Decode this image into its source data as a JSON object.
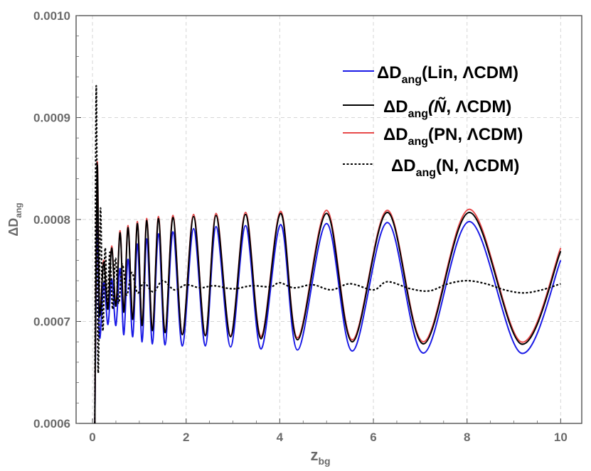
{
  "chart_data": {
    "type": "line",
    "xlabel": {
      "base": "z",
      "sub": "bg"
    },
    "ylabel": {
      "base": "ΔD",
      "sub": "ang"
    },
    "xlim": [
      -0.35,
      10.45
    ],
    "ylim": [
      0.0006,
      0.001
    ],
    "xticks": [
      {
        "value": 0,
        "label": "0"
      },
      {
        "value": 2,
        "label": "2"
      },
      {
        "value": 4,
        "label": "4"
      },
      {
        "value": 6,
        "label": "6"
      },
      {
        "value": 8,
        "label": "8"
      },
      {
        "value": 10,
        "label": "10"
      }
    ],
    "yticks": [
      {
        "value": 0.0006,
        "label": "0.0006"
      },
      {
        "value": 0.0007,
        "label": "0.0007"
      },
      {
        "value": 0.0008,
        "label": "0.0008"
      },
      {
        "value": 0.0009,
        "label": "0.0009"
      },
      {
        "value": 0.001,
        "label": "0.0010"
      }
    ],
    "grid": true,
    "legend_position": "top-right",
    "colors": {
      "lin": "#1a1ae6",
      "ntilde": "#000000",
      "pn": "#e8494a",
      "n": "#000000"
    },
    "series": [
      {
        "key": "lin",
        "label": {
          "pre": "ΔD",
          "sub": "ang",
          "args": "(Lin, ΛCDM)",
          "italic": ""
        },
        "color": "#1a1ae6",
        "dash": "",
        "x": [
          0.05,
          0.1,
          0.15,
          0.24,
          0.33,
          0.41,
          0.5,
          0.59,
          0.67,
          0.76,
          0.86,
          0.96,
          1.06,
          1.16,
          1.28,
          1.41,
          1.55,
          1.72,
          1.92,
          2.16,
          2.41,
          2.64,
          2.95,
          3.27,
          3.6,
          4.02,
          4.38,
          5.0,
          5.55,
          6.3,
          7.07,
          8.05,
          9.15,
          10.0
        ],
        "y": [
          0.0006,
          0.00081,
          0.000685,
          0.000738,
          0.000697,
          0.000742,
          0.000696,
          0.000752,
          0.000687,
          0.000761,
          0.000685,
          0.000776,
          0.00068,
          0.000781,
          0.000678,
          0.000786,
          0.000677,
          0.000788,
          0.000676,
          0.000791,
          0.000676,
          0.000793,
          0.000675,
          0.000794,
          0.000673,
          0.000795,
          0.000672,
          0.000796,
          0.000671,
          0.000797,
          0.000669,
          0.000798,
          0.000669,
          0.00076
        ]
      },
      {
        "key": "ntilde",
        "label": {
          "pre": "ΔD",
          "sub": "ang",
          "args": ", ΛCDM)",
          "italic": "(Ñ"
        },
        "color": "#000000",
        "dash": "",
        "x": [
          0.05,
          0.1,
          0.15,
          0.24,
          0.33,
          0.41,
          0.5,
          0.59,
          0.67,
          0.76,
          0.86,
          0.96,
          1.06,
          1.16,
          1.28,
          1.41,
          1.55,
          1.72,
          1.92,
          2.16,
          2.41,
          2.64,
          2.95,
          3.27,
          3.6,
          4.02,
          4.38,
          5.0,
          5.55,
          6.3,
          7.07,
          8.05,
          9.15,
          10.0
        ],
        "y": [
          0.0006,
          0.000852,
          0.000708,
          0.000758,
          0.000712,
          0.000772,
          0.000715,
          0.000787,
          0.000709,
          0.000792,
          0.000702,
          0.000796,
          0.000696,
          0.000799,
          0.000691,
          0.000801,
          0.000689,
          0.000802,
          0.000687,
          0.000803,
          0.000686,
          0.000804,
          0.000685,
          0.000805,
          0.000683,
          0.000806,
          0.000682,
          0.000806,
          0.00068,
          0.000807,
          0.000678,
          0.000807,
          0.000678,
          0.000769
        ]
      },
      {
        "key": "pn",
        "label": {
          "pre": "ΔD",
          "sub": "ang",
          "args": "(PN, ΛCDM)",
          "italic": ""
        },
        "color": "#e8494a",
        "dash": "",
        "x": [
          0.05,
          0.1,
          0.15,
          0.24,
          0.33,
          0.41,
          0.5,
          0.59,
          0.67,
          0.76,
          0.86,
          0.96,
          1.06,
          1.16,
          1.28,
          1.41,
          1.55,
          1.72,
          1.92,
          2.16,
          2.41,
          2.64,
          2.95,
          3.27,
          3.6,
          4.02,
          4.38,
          5.0,
          5.55,
          6.3,
          7.07,
          8.05,
          9.15,
          10.0
        ],
        "y": [
          0.0006,
          0.000855,
          0.000711,
          0.00076,
          0.000713,
          0.000774,
          0.000716,
          0.000789,
          0.00071,
          0.000794,
          0.000703,
          0.000798,
          0.000697,
          0.000801,
          0.000692,
          0.000803,
          0.00069,
          0.000804,
          0.000688,
          0.000805,
          0.000687,
          0.000806,
          0.000686,
          0.000807,
          0.000685,
          0.000808,
          0.000684,
          0.000809,
          0.000682,
          0.000809,
          0.00068,
          0.00081,
          0.00068,
          0.000772
        ]
      },
      {
        "key": "n",
        "label": {
          "pre": "ΔD",
          "sub": "ang",
          "args": "(N, ΛCDM)",
          "italic": ""
        },
        "color": "#000000",
        "dash": "3 2.5",
        "x": [
          0.05,
          0.08,
          0.12,
          0.17,
          0.22,
          0.27,
          0.32,
          0.37,
          0.43,
          0.49,
          0.56,
          0.64,
          0.73,
          0.84,
          0.96,
          1.1,
          1.3,
          1.5,
          1.75,
          2.0,
          2.3,
          2.6,
          3.0,
          3.4,
          3.8,
          4.0,
          4.3,
          4.7,
          5.1,
          5.5,
          6.0,
          6.3,
          6.8,
          7.2,
          7.6,
          8.0,
          8.4,
          8.8,
          9.2,
          9.6,
          10.0
        ],
        "y": [
          0.0006,
          0.000931,
          0.000651,
          0.000811,
          0.000691,
          0.000772,
          0.000712,
          0.000768,
          0.000712,
          0.000762,
          0.000718,
          0.000756,
          0.000726,
          0.000748,
          0.000728,
          0.000738,
          0.000729,
          0.00074,
          0.000731,
          0.000736,
          0.000733,
          0.000735,
          0.000732,
          0.000735,
          0.000734,
          0.000738,
          0.000733,
          0.000736,
          0.000731,
          0.000737,
          0.000731,
          0.000739,
          0.000732,
          0.00073,
          0.000737,
          0.00074,
          0.000737,
          0.000731,
          0.000728,
          0.000731,
          0.000737
        ]
      }
    ]
  }
}
